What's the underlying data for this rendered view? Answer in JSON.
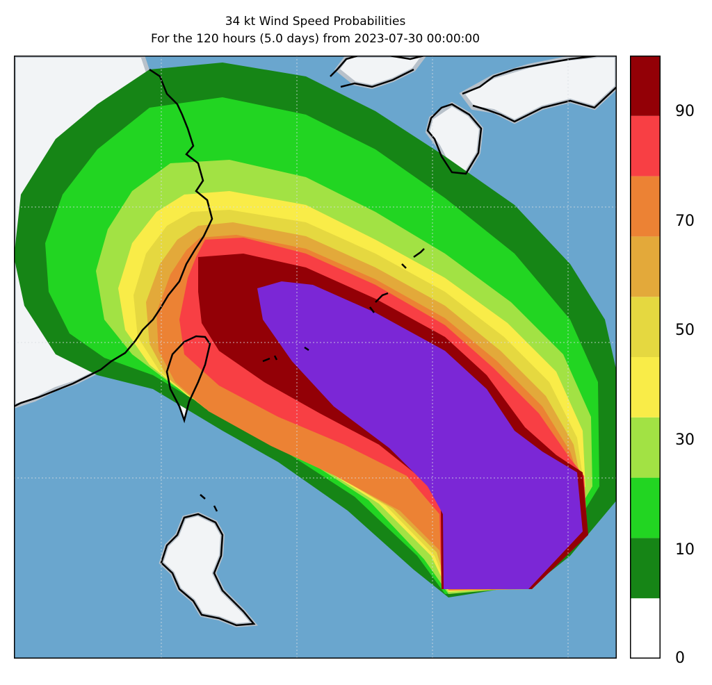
{
  "title": "34 kt Wind Speed Probabilities",
  "subtitle": "For the 120 hours (5.0 days) from 2023-07-30 00:00:00",
  "colorbar": {
    "min": 0,
    "max": 100,
    "ticks": [
      "0",
      "10",
      "30",
      "50",
      "70",
      "90"
    ],
    "levels": [
      0,
      10,
      20,
      30,
      40,
      50,
      60,
      70,
      80,
      90,
      100
    ],
    "colors": [
      "#ffffff",
      "#168516",
      "#22d522",
      "#a2e244",
      "#f9ec48",
      "#e5d840",
      "#e3a93a",
      "#ec8234",
      "#f83f44",
      "#930006",
      "#7b27d6"
    ]
  },
  "map": {
    "ocean_color": "#6aa6ce",
    "land_color": "#f2f4f6",
    "coastline_color": "#000000",
    "gridlines": true
  }
}
